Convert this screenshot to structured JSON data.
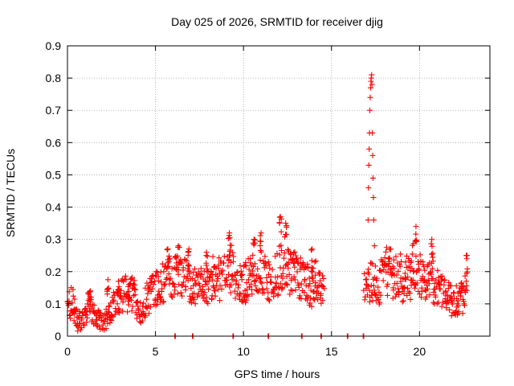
{
  "chart_data": {
    "type": "scatter",
    "title": "Day 025 of 2026, SRMTID for receiver djig",
    "xlabel": "GPS time / hours",
    "ylabel": "SRMTID / TECUs",
    "xlim": [
      0,
      24
    ],
    "ylim": [
      0,
      0.9
    ],
    "x_ticks": [
      0,
      5,
      10,
      15,
      20
    ],
    "x_tick_labels": [
      "0",
      "5",
      "10",
      "15",
      "20"
    ],
    "y_ticks": [
      0,
      0.1,
      0.2,
      0.3,
      0.4,
      0.5,
      0.6,
      0.7,
      0.8,
      0.9
    ],
    "y_tick_labels": [
      "0",
      "0.1",
      "0.2",
      "0.3",
      "0.4",
      "0.5",
      "0.6",
      "0.7",
      "0.8",
      "0.9"
    ],
    "grid": true,
    "marker": "+",
    "colors": {
      "series": "#ff0000",
      "axis": "#000000",
      "grid": "#a0a0a0",
      "background": "#ffffff"
    },
    "series": [
      {
        "name": "SRMTID",
        "anchors": [
          [
            0.0,
            0.08
          ],
          [
            0.2,
            0.11
          ],
          [
            0.4,
            0.08
          ],
          [
            0.6,
            0.04
          ],
          [
            0.8,
            0.05
          ],
          [
            1.0,
            0.06
          ],
          [
            1.2,
            0.1
          ],
          [
            1.4,
            0.07
          ],
          [
            1.6,
            0.06
          ],
          [
            1.8,
            0.05
          ],
          [
            2.0,
            0.04
          ],
          [
            2.2,
            0.05
          ],
          [
            2.4,
            0.07
          ],
          [
            2.6,
            0.09
          ],
          [
            2.8,
            0.11
          ],
          [
            3.0,
            0.13
          ],
          [
            3.3,
            0.14
          ],
          [
            3.6,
            0.13
          ],
          [
            3.8,
            0.12
          ],
          [
            4.0,
            0.07
          ],
          [
            4.2,
            0.07
          ],
          [
            4.4,
            0.1
          ],
          [
            4.6,
            0.12
          ],
          [
            4.8,
            0.14
          ],
          [
            5.0,
            0.15
          ],
          [
            5.3,
            0.16
          ],
          [
            5.6,
            0.17
          ],
          [
            6.0,
            0.19
          ],
          [
            6.4,
            0.2
          ],
          [
            6.8,
            0.17
          ],
          [
            7.2,
            0.15
          ],
          [
            7.6,
            0.17
          ],
          [
            8.0,
            0.16
          ],
          [
            8.4,
            0.19
          ],
          [
            8.8,
            0.18
          ],
          [
            9.2,
            0.21
          ],
          [
            9.6,
            0.17
          ],
          [
            10.0,
            0.16
          ],
          [
            10.4,
            0.18
          ],
          [
            10.8,
            0.2
          ],
          [
            11.2,
            0.19
          ],
          [
            11.6,
            0.17
          ],
          [
            12.0,
            0.2
          ],
          [
            12.4,
            0.21
          ],
          [
            12.8,
            0.19
          ],
          [
            13.2,
            0.18
          ],
          [
            13.6,
            0.17
          ],
          [
            14.0,
            0.16
          ],
          [
            14.4,
            0.17
          ],
          [
            14.6,
            0.18
          ],
          [
            16.8,
            0.15
          ],
          [
            17.0,
            0.16
          ],
          [
            17.2,
            0.17
          ],
          [
            17.4,
            0.16
          ],
          [
            17.6,
            0.17
          ],
          [
            18.0,
            0.19
          ],
          [
            18.4,
            0.2
          ],
          [
            18.8,
            0.18
          ],
          [
            19.2,
            0.17
          ],
          [
            19.6,
            0.21
          ],
          [
            20.0,
            0.19
          ],
          [
            20.4,
            0.17
          ],
          [
            20.8,
            0.16
          ],
          [
            21.2,
            0.14
          ],
          [
            21.6,
            0.12
          ],
          [
            22.0,
            0.11
          ],
          [
            22.4,
            0.12
          ],
          [
            22.7,
            0.17
          ]
        ],
        "spikes": [
          [
            1.3,
            0.14
          ],
          [
            2.3,
            0.175
          ],
          [
            2.9,
            0.17
          ],
          [
            3.5,
            0.16
          ],
          [
            5.7,
            0.27
          ],
          [
            6.3,
            0.28
          ],
          [
            6.9,
            0.27
          ],
          [
            7.9,
            0.26
          ],
          [
            9.2,
            0.32
          ],
          [
            10.6,
            0.3
          ],
          [
            11.0,
            0.32
          ],
          [
            12.1,
            0.37
          ],
          [
            12.4,
            0.35
          ],
          [
            13.9,
            0.27
          ],
          [
            18.3,
            0.27
          ],
          [
            19.8,
            0.34
          ],
          [
            20.7,
            0.3
          ],
          [
            22.7,
            0.25
          ]
        ],
        "storm_peak": [
          [
            17.08,
            0.36
          ],
          [
            17.1,
            0.46
          ],
          [
            17.12,
            0.53
          ],
          [
            17.14,
            0.58
          ],
          [
            17.16,
            0.63
          ],
          [
            17.18,
            0.7
          ],
          [
            17.2,
            0.74
          ],
          [
            17.22,
            0.77
          ],
          [
            17.24,
            0.79
          ],
          [
            17.26,
            0.8
          ],
          [
            17.28,
            0.81
          ],
          [
            17.3,
            0.78
          ],
          [
            17.32,
            0.63
          ],
          [
            17.34,
            0.56
          ],
          [
            17.36,
            0.49
          ],
          [
            17.38,
            0.43
          ],
          [
            17.4,
            0.36
          ],
          [
            17.44,
            0.28
          ]
        ],
        "zero_markers": [
          6.1,
          7.1,
          9.4,
          11.4,
          13.3,
          14.4,
          15.9,
          16.8
        ]
      }
    ]
  }
}
